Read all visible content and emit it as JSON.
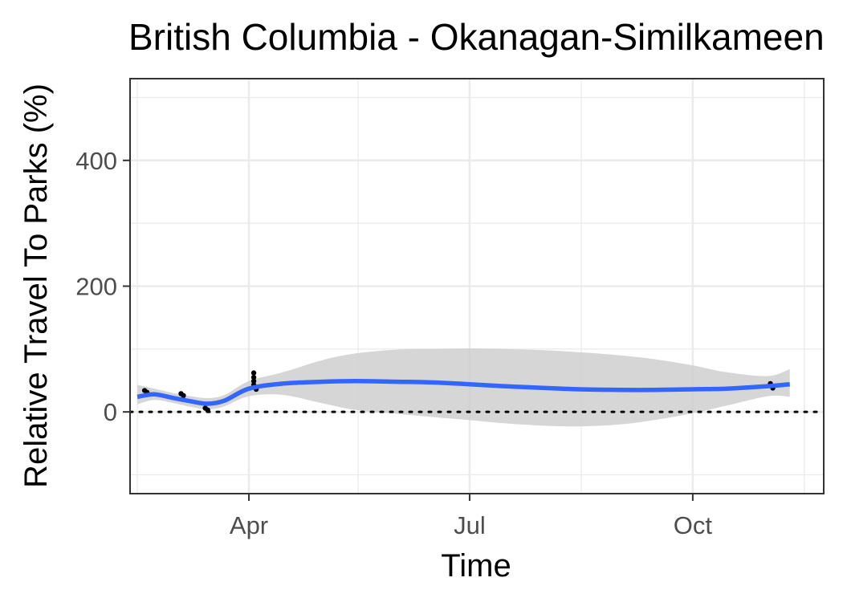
{
  "chart_data": {
    "type": "line",
    "title": "British Columbia - Okanagan-Similkameen",
    "xlabel": "Time",
    "ylabel": "Relative Travel To Parks (%)",
    "x_tick_labels": [
      "Apr",
      "Jul",
      "Oct"
    ],
    "y_tick_labels": [
      "0",
      "200",
      "400"
    ],
    "ylim": [
      -130,
      530
    ],
    "xlim": [
      "2020-02-12",
      "2020-11-24"
    ],
    "grid": true,
    "reference_line": {
      "y": 0,
      "style": "dotted"
    },
    "series": [
      {
        "style": "smooth",
        "color": "#3366ff",
        "x": [
          "2020-02-15",
          "2020-02-22",
          "2020-03-01",
          "2020-03-08",
          "2020-03-15",
          "2020-03-22",
          "2020-04-01",
          "2020-04-15",
          "2020-05-01",
          "2020-05-15",
          "2020-06-01",
          "2020-06-15",
          "2020-07-01",
          "2020-07-15",
          "2020-08-01",
          "2020-08-15",
          "2020-09-01",
          "2020-09-15",
          "2020-10-01",
          "2020-10-15",
          "2020-11-01",
          "2020-11-10"
        ],
        "values": [
          24,
          28,
          22,
          17,
          13,
          18,
          37,
          45,
          48,
          49,
          48,
          47,
          44,
          41,
          38,
          36,
          35,
          35,
          36,
          37,
          41,
          44
        ],
        "ci_lower": [
          12,
          19,
          14,
          8,
          4,
          9,
          25,
          27,
          14,
          3,
          -3,
          -8,
          -13,
          -18,
          -22,
          -23,
          -20,
          -13,
          -2,
          10,
          25,
          24
        ],
        "ci_upper": [
          43,
          37,
          30,
          25,
          22,
          27,
          49,
          63,
          82,
          93,
          99,
          100,
          101,
          100,
          98,
          95,
          90,
          84,
          74,
          63,
          57,
          68
        ]
      },
      {
        "style": "points",
        "color": "#000000",
        "x": [
          "2020-02-18",
          "2020-02-19",
          "2020-03-04",
          "2020-03-05",
          "2020-03-14",
          "2020-03-15",
          "2020-04-03",
          "2020-04-03",
          "2020-04-03",
          "2020-04-03",
          "2020-04-04",
          "2020-11-02",
          "2020-11-03"
        ],
        "values": [
          34,
          31,
          29,
          26,
          6,
          3,
          62,
          55,
          49,
          43,
          36,
          45,
          38
        ]
      }
    ]
  }
}
